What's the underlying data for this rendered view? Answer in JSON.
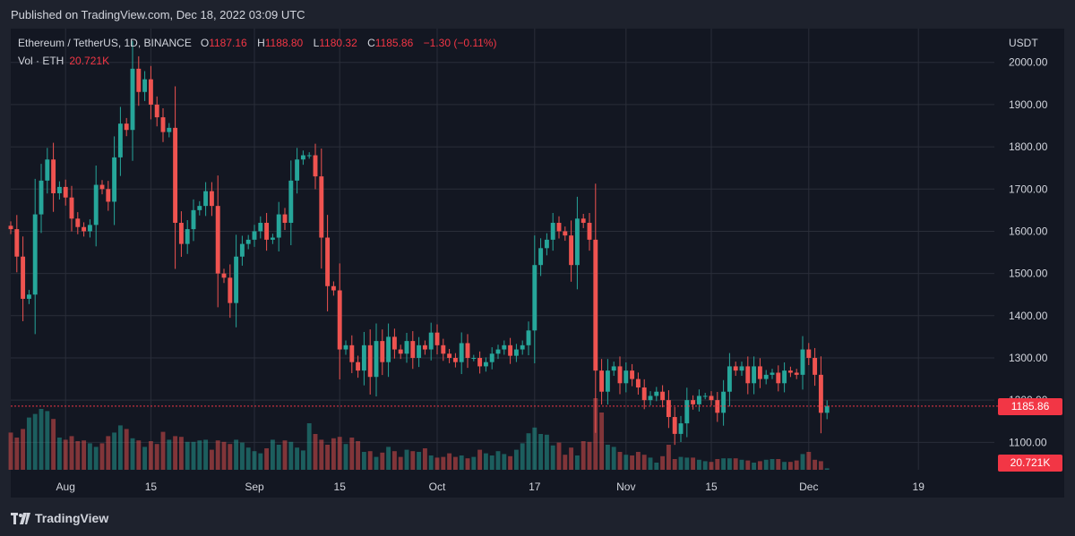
{
  "published": "Published on TradingView.com, Dec 18, 2022 03:09 UTC",
  "legend": {
    "symbol": "Ethereum / TetherUS, 1D, BINANCE",
    "open_label": "O",
    "open": "1187.16",
    "high_label": "H",
    "high": "1188.80",
    "low_label": "L",
    "low": "1180.32",
    "close_label": "C",
    "close": "1185.86",
    "change": "−1.30 (−0.11%)",
    "volume_label": "Vol · ETH",
    "volume": "20.721K"
  },
  "axis_unit": "USDT",
  "last_price_tag": "1185.86",
  "last_volume_tag": "20.721K",
  "footer_brand": "TradingView",
  "colors": {
    "up": "#26a69a",
    "down": "#ef5350",
    "background": "#131722",
    "grid": "#2a2e39",
    "text": "#d1d4dc"
  },
  "chart_data": {
    "type": "candlestick",
    "title": "Ethereum / TetherUS, 1D, BINANCE",
    "ylabel": "USDT",
    "ylim": [
      1035,
      2080
    ],
    "y_ticks": [
      {
        "value": 1100,
        "label": "1100.00"
      },
      {
        "value": 1200,
        "label": "1200.00"
      },
      {
        "value": 1300,
        "label": "1300.00"
      },
      {
        "value": 1400,
        "label": "1400.00"
      },
      {
        "value": 1500,
        "label": "1500.00"
      },
      {
        "value": 1600,
        "label": "1600.00"
      },
      {
        "value": 1700,
        "label": "1700.00"
      },
      {
        "value": 1800,
        "label": "1800.00"
      },
      {
        "value": 1900,
        "label": "1900.00"
      },
      {
        "value": 2000,
        "label": "2000.00"
      }
    ],
    "x_ticks": [
      {
        "date": "2022-08-01",
        "label": "Aug"
      },
      {
        "date": "2022-08-15",
        "label": "15"
      },
      {
        "date": "2022-09-01",
        "label": "Sep"
      },
      {
        "date": "2022-09-15",
        "label": "15"
      },
      {
        "date": "2022-10-01",
        "label": "Oct"
      },
      {
        "date": "2022-10-17",
        "label": "17"
      },
      {
        "date": "2022-11-01",
        "label": "Nov"
      },
      {
        "date": "2022-11-15",
        "label": "15"
      },
      {
        "date": "2022-12-01",
        "label": "Dec"
      },
      {
        "date": "2022-12-19",
        "label": "19"
      }
    ],
    "first_date": "2022-07-23",
    "last_close": 1185.86,
    "close": [
      1605,
      1540,
      1440,
      1450,
      1640,
      1720,
      1770,
      1690,
      1705,
      1680,
      1630,
      1610,
      1600,
      1615,
      1710,
      1700,
      1670,
      1775,
      1855,
      1840,
      1985,
      1930,
      1960,
      1900,
      1870,
      1835,
      1845,
      1620,
      1570,
      1605,
      1650,
      1660,
      1695,
      1660,
      1500,
      1490,
      1430,
      1540,
      1570,
      1580,
      1600,
      1620,
      1580,
      1585,
      1640,
      1620,
      1720,
      1770,
      1780,
      1780,
      1730,
      1585,
      1470,
      1460,
      1320,
      1330,
      1290,
      1270,
      1330,
      1255,
      1340,
      1290,
      1350,
      1320,
      1310,
      1340,
      1300,
      1330,
      1320,
      1360,
      1330,
      1310,
      1300,
      1290,
      1335,
      1300,
      1300,
      1280,
      1290,
      1310,
      1320,
      1330,
      1305,
      1320,
      1330,
      1365,
      1520,
      1560,
      1580,
      1620,
      1600,
      1590,
      1520,
      1630,
      1620,
      1580,
      1270,
      1220,
      1270,
      1280,
      1240,
      1270,
      1250,
      1230,
      1200,
      1210,
      1220,
      1200,
      1160,
      1120,
      1145,
      1200,
      1190,
      1210,
      1210,
      1200,
      1170,
      1220,
      1280,
      1270,
      1280,
      1240,
      1280,
      1250,
      1260,
      1265,
      1240,
      1270,
      1265,
      1260,
      1320,
      1300,
      1260,
      1170,
      1185.86
    ],
    "volume": [
      0.52,
      0.45,
      0.57,
      0.73,
      0.78,
      0.85,
      0.82,
      0.71,
      0.45,
      0.42,
      0.47,
      0.4,
      0.41,
      0.37,
      0.32,
      0.37,
      0.47,
      0.52,
      0.62,
      0.57,
      0.44,
      0.41,
      0.32,
      0.4,
      0.36,
      0.53,
      0.42,
      0.47,
      0.46,
      0.39,
      0.39,
      0.41,
      0.42,
      0.28,
      0.41,
      0.39,
      0.36,
      0.42,
      0.38,
      0.31,
      0.26,
      0.23,
      0.3,
      0.42,
      0.35,
      0.41,
      0.39,
      0.31,
      0.27,
      0.65,
      0.5,
      0.42,
      0.35,
      0.44,
      0.46,
      0.36,
      0.45,
      0.4,
      0.25,
      0.26,
      0.18,
      0.24,
      0.32,
      0.26,
      0.18,
      0.28,
      0.26,
      0.25,
      0.3,
      0.2,
      0.17,
      0.18,
      0.23,
      0.18,
      0.2,
      0.16,
      0.18,
      0.28,
      0.23,
      0.2,
      0.26,
      0.22,
      0.19,
      0.28,
      0.37,
      0.51,
      0.59,
      0.5,
      0.49,
      0.34,
      0.38,
      0.21,
      0.31,
      0.2,
      0.4,
      0.39,
      1.0,
      0.8,
      0.35,
      0.32,
      0.25,
      0.21,
      0.2,
      0.25,
      0.21,
      0.17,
      0.1,
      0.19,
      0.35,
      0.15,
      0.18,
      0.17,
      0.17,
      0.14,
      0.12,
      0.11,
      0.15,
      0.16,
      0.16,
      0.16,
      0.14,
      0.13,
      0.1,
      0.12,
      0.14,
      0.15,
      0.15,
      0.11,
      0.11,
      0.13,
      0.22,
      0.25,
      0.14,
      0.12,
      0.02
    ]
  }
}
